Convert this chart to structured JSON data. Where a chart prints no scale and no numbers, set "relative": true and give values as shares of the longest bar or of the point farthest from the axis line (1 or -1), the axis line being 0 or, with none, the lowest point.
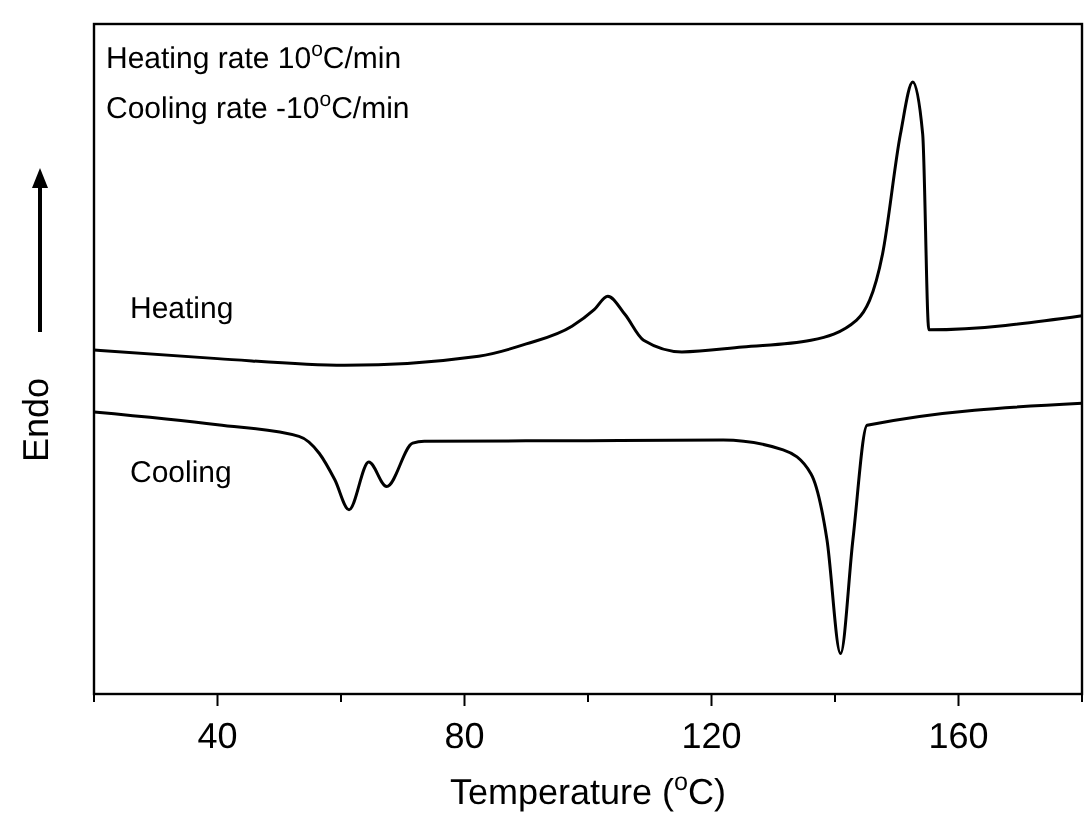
{
  "chart_data": {
    "type": "line",
    "relative": true,
    "xlabel": "Temperature ($^{o}$C)",
    "ylabel": "Endo",
    "xlim": [
      20,
      180
    ],
    "xticks": [
      {
        "value": 20,
        "label": null
      },
      40,
      {
        "value": 60,
        "label": null
      },
      80,
      {
        "value": 100,
        "label": null
      },
      120,
      {
        "value": 140,
        "label": null
      },
      160,
      {
        "value": 180,
        "label": null
      }
    ],
    "annotations": [
      "Heating rate 10$^{o}$C/min",
      "Cooling rate -10$^{o}$C/min"
    ],
    "series": [
      {
        "name": "Heating",
        "color": "#000000",
        "x": [
          20,
          40,
          60.6,
          82.3,
          90,
          97.4,
          101,
          103.2,
          106,
          109,
          115.2,
          125,
          136.1,
          143.5,
          147.7,
          150.6,
          152.6,
          154.2,
          155.2,
          180
        ],
        "values": [
          0.562,
          0.548,
          0.537,
          0.552,
          0.572,
          0.601,
          0.628,
          0.65,
          0.62,
          0.578,
          0.559,
          0.567,
          0.578,
          0.611,
          0.719,
          0.915,
          1.0,
          0.915,
          0.595,
          0.618
        ]
      },
      {
        "name": "Cooling",
        "color": "#000000",
        "x": [
          20,
          40,
          53.2,
          56.5,
          59,
          61.3,
          64.5,
          67.4,
          71.6,
          73.5,
          100,
          121.9,
          131.6,
          136.1,
          138.7,
          140.9,
          142.9,
          145.2,
          180
        ],
        "values": [
          0.461,
          0.44,
          0.421,
          0.393,
          0.35,
          0.301,
          0.379,
          0.339,
          0.41,
          0.413,
          0.414,
          0.415,
          0.399,
          0.36,
          0.252,
          0.066,
          0.252,
          0.439,
          0.475
        ]
      }
    ]
  }
}
